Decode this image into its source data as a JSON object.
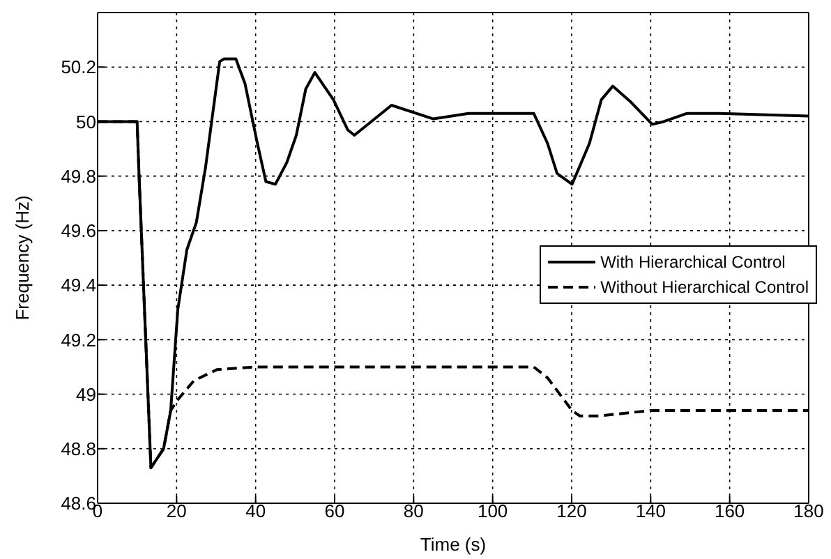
{
  "chart_data": {
    "type": "line",
    "xlabel": "Time (s)",
    "ylabel": "Frequency (Hz)",
    "xlim": [
      0,
      180
    ],
    "xticks": [
      0,
      20,
      40,
      60,
      80,
      100,
      120,
      140,
      160,
      180
    ],
    "ylim": [
      48.6,
      50.4
    ],
    "yticks": [
      48.6,
      48.8,
      49,
      49.2,
      49.4,
      49.6,
      49.8,
      50,
      50.2
    ],
    "grid": true,
    "legend": "right",
    "marker": "none",
    "series": [
      {
        "name": "With Hierarchical Control",
        "color": "#000000",
        "line_style": "solid",
        "x": [
          0,
          10,
          10.5,
          13.5,
          16.7,
          18.5,
          20.3,
          22.6,
          25,
          27.3,
          30.9,
          32,
          35,
          37.3,
          40.3,
          42.6,
          45,
          47.9,
          50.3,
          52.7,
          55,
          59.7,
          63.3,
          65,
          74.4,
          85,
          93.9,
          110.4,
          113.9,
          116.3,
          120.1,
          124.5,
          127.5,
          130.4,
          135.1,
          140.4,
          143.3,
          149.2,
          157.5,
          180
        ],
        "values": [
          50,
          50,
          49.8,
          48.73,
          48.8,
          48.94,
          49.31,
          49.53,
          49.63,
          49.83,
          50.22,
          50.23,
          50.23,
          50.14,
          49.93,
          49.78,
          49.77,
          49.85,
          49.95,
          50.12,
          50.18,
          50.08,
          49.97,
          49.95,
          50.06,
          50.01,
          50.03,
          50.03,
          49.92,
          49.81,
          49.77,
          49.92,
          50.08,
          50.13,
          50.07,
          49.99,
          50,
          50.03,
          50.03,
          50.02
        ]
      },
      {
        "name": "Without Hierarchical Control",
        "color": "#000000",
        "line_style": "dashed",
        "x": [
          0,
          10,
          10.5,
          13.5,
          16.7,
          18.5,
          20.3,
          24.4,
          30.2,
          39.6,
          110.4,
          113.9,
          120.1,
          122.1,
          126.8,
          139.8,
          180
        ],
        "values": [
          50,
          50,
          49.8,
          48.73,
          48.8,
          48.94,
          48.98,
          49.05,
          49.09,
          49.1,
          49.1,
          49.06,
          48.94,
          48.92,
          48.92,
          48.94,
          48.94
        ]
      }
    ]
  }
}
